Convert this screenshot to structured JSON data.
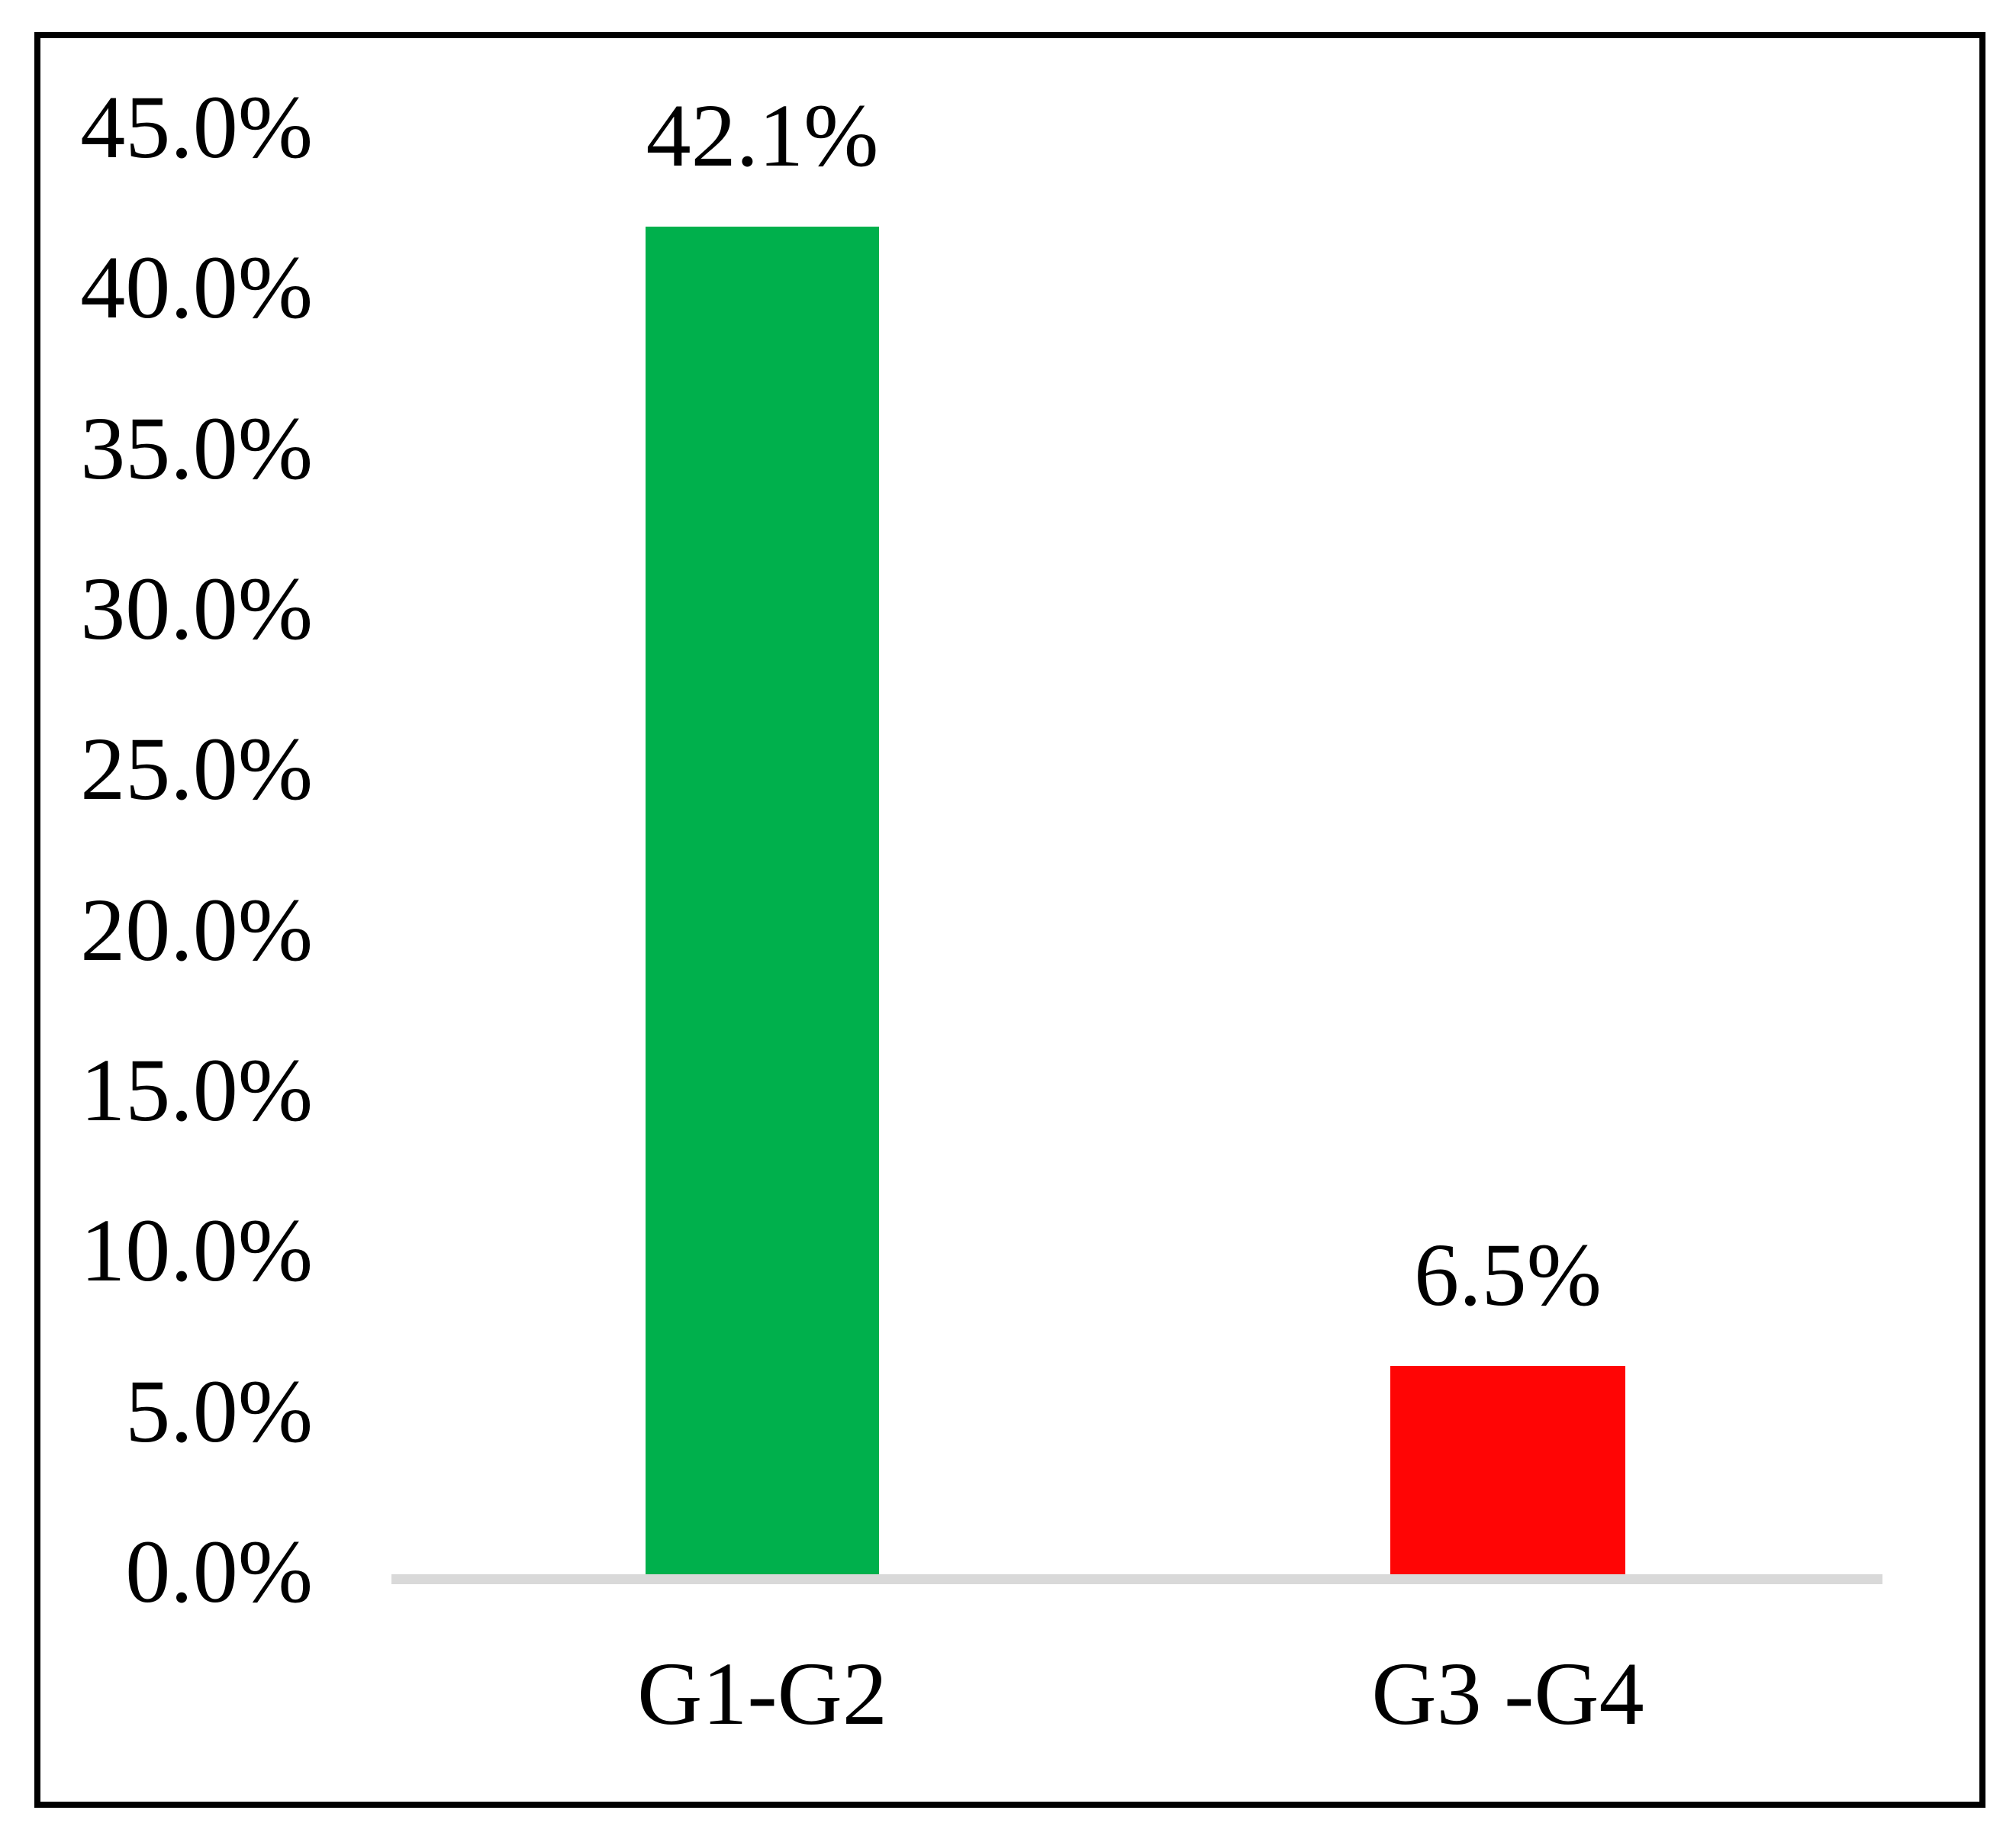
{
  "chart_data": {
    "type": "bar",
    "categories": [
      "G1-G2",
      "G3 -G4"
    ],
    "values": [
      42.1,
      6.5
    ],
    "value_labels": [
      "42.1%",
      "6.5%"
    ],
    "bar_colors": [
      "#00B04C",
      "#FF0505"
    ],
    "yticks": [
      "45.0%",
      "40.0%",
      "35.0%",
      "30.0%",
      "25.0%",
      "20.0%",
      "15.0%",
      "10.0%",
      "5.0%",
      "0.0%"
    ],
    "ylim": [
      0,
      45
    ],
    "ytick_step": 5,
    "title": "",
    "xlabel": "",
    "ylabel": "",
    "grid": false,
    "legend": false,
    "axis_line_color": "#D9D9D9",
    "frame_border_color": "#000000",
    "background_color": "#FFFFFF"
  }
}
